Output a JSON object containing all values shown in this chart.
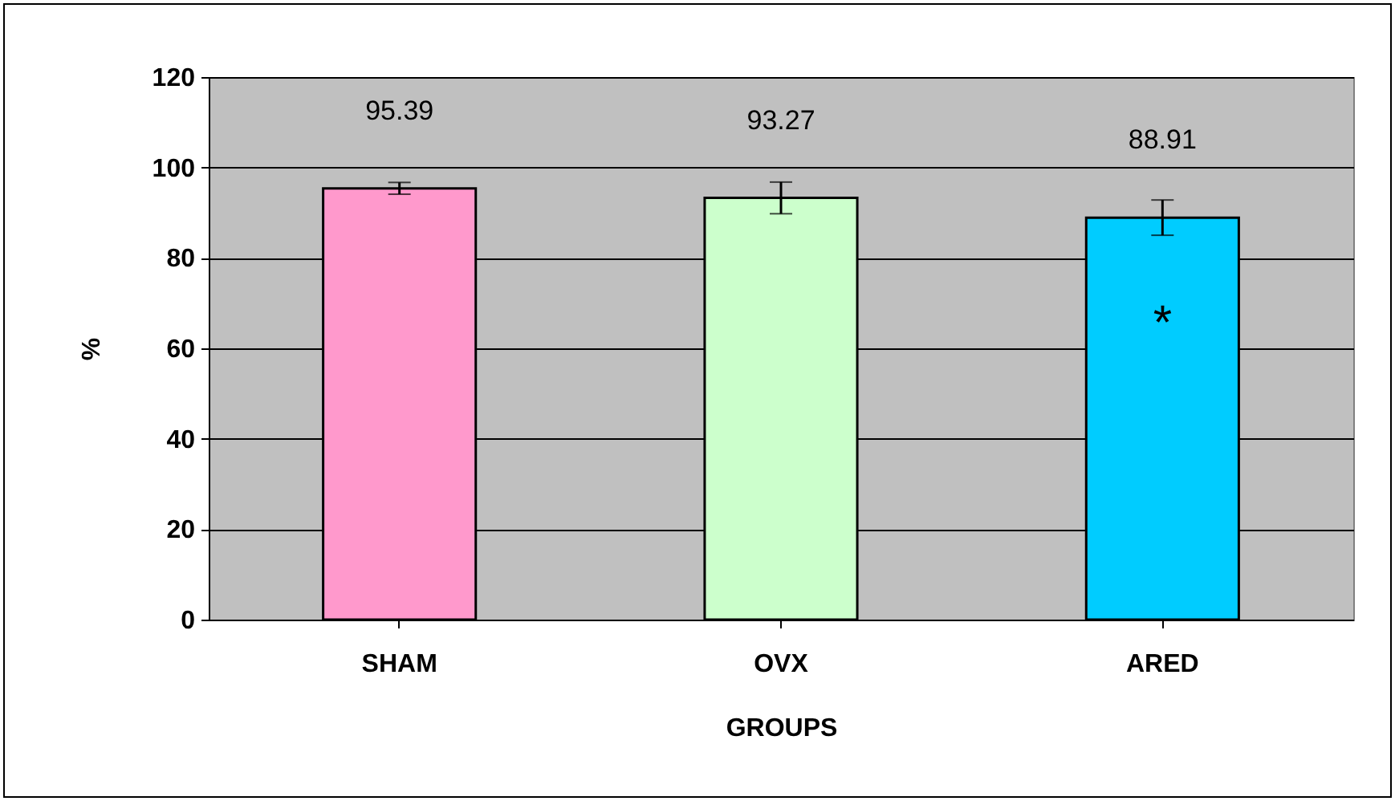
{
  "chart_data": {
    "type": "bar",
    "xlabel": "GROUPS",
    "ylabel": "%",
    "categories": [
      "SHAM",
      "OVX",
      "ARED"
    ],
    "values": [
      95.39,
      93.27,
      88.91
    ],
    "colors": [
      "#ff99cc",
      "#ccffcc",
      "#00ccff"
    ],
    "errors": [
      1.3,
      3.5,
      3.9
    ],
    "ylim": [
      0,
      120
    ],
    "yticks": [
      0,
      20,
      40,
      60,
      80,
      100,
      120
    ],
    "grid": "y",
    "data_labels": true,
    "annotations": [
      "*"
    ]
  }
}
